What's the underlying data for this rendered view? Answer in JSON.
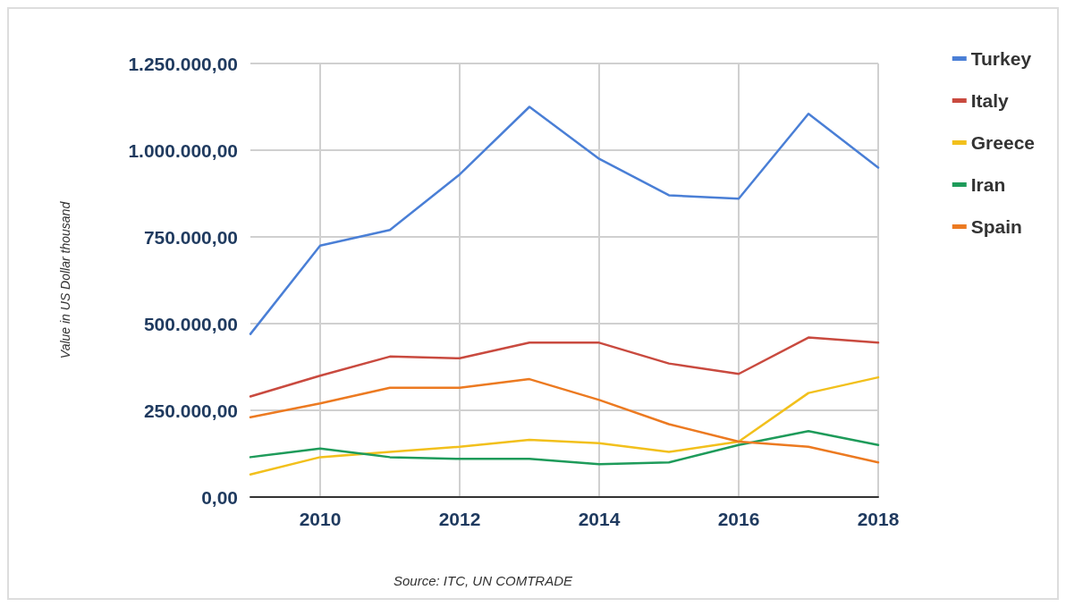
{
  "chart_data": {
    "type": "line",
    "ylabel": "Value in US Dollar thousand",
    "annotations": [
      "Source: ITC, UN COMTRADE"
    ],
    "x": [
      2009,
      2010,
      2011,
      2012,
      2013,
      2014,
      2015,
      2016,
      2017,
      2018
    ],
    "series": [
      {
        "name": "Turkey",
        "color": "#4a7fd6",
        "values": [
          470000,
          725000,
          770000,
          930000,
          1125000,
          975000,
          870000,
          860000,
          1105000,
          950000
        ]
      },
      {
        "name": "Italy",
        "color": "#c94a3f",
        "values": [
          290000,
          350000,
          405000,
          400000,
          445000,
          445000,
          385000,
          355000,
          460000,
          445000
        ]
      },
      {
        "name": "Greece",
        "color": "#f2c01c",
        "values": [
          65000,
          115000,
          130000,
          145000,
          165000,
          155000,
          130000,
          160000,
          300000,
          345000
        ]
      },
      {
        "name": "Iran",
        "color": "#1e9b5a",
        "values": [
          115000,
          140000,
          115000,
          110000,
          110000,
          95000,
          100000,
          150000,
          190000,
          150000
        ]
      },
      {
        "name": "Spain",
        "color": "#ec7a21",
        "values": [
          230000,
          270000,
          315000,
          315000,
          340000,
          280000,
          210000,
          160000,
          145000,
          100000
        ]
      }
    ],
    "xlim": [
      2009,
      2018
    ],
    "xticks": [
      2010,
      2012,
      2014,
      2016,
      2018
    ],
    "ylim": [
      0,
      1250000
    ],
    "yticks": [
      {
        "value": 0,
        "label": "0,00"
      },
      {
        "value": 250000,
        "label": "250.000,00"
      },
      {
        "value": 500000,
        "label": "500.000,00"
      },
      {
        "value": 750000,
        "label": "750.000,00"
      },
      {
        "value": 1000000,
        "label": "1.000.000,00"
      },
      {
        "value": 1250000,
        "label": "1.250.000,00"
      }
    ],
    "grid": true,
    "legend": "top right",
    "marker": "none",
    "line_style": "solid"
  }
}
